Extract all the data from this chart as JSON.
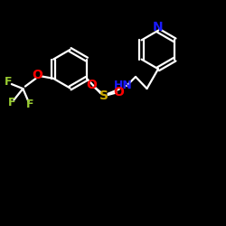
{
  "bg_color": "#000000",
  "bond_color": "#ffffff",
  "N_color": "#1a1aff",
  "O_color": "#ff0000",
  "S_color": "#ccaa00",
  "F_color": "#9acd32",
  "label_NH": "HN",
  "label_N": "N",
  "label_S": "S",
  "label_O1": "O",
  "label_O2": "O",
  "label_O_ether": "O",
  "label_F1": "F",
  "label_F2": "F",
  "label_F3": "F",
  "figsize": [
    2.5,
    2.5
  ],
  "dpi": 100,
  "xlim": [
    0,
    10
  ],
  "ylim": [
    0,
    10
  ]
}
